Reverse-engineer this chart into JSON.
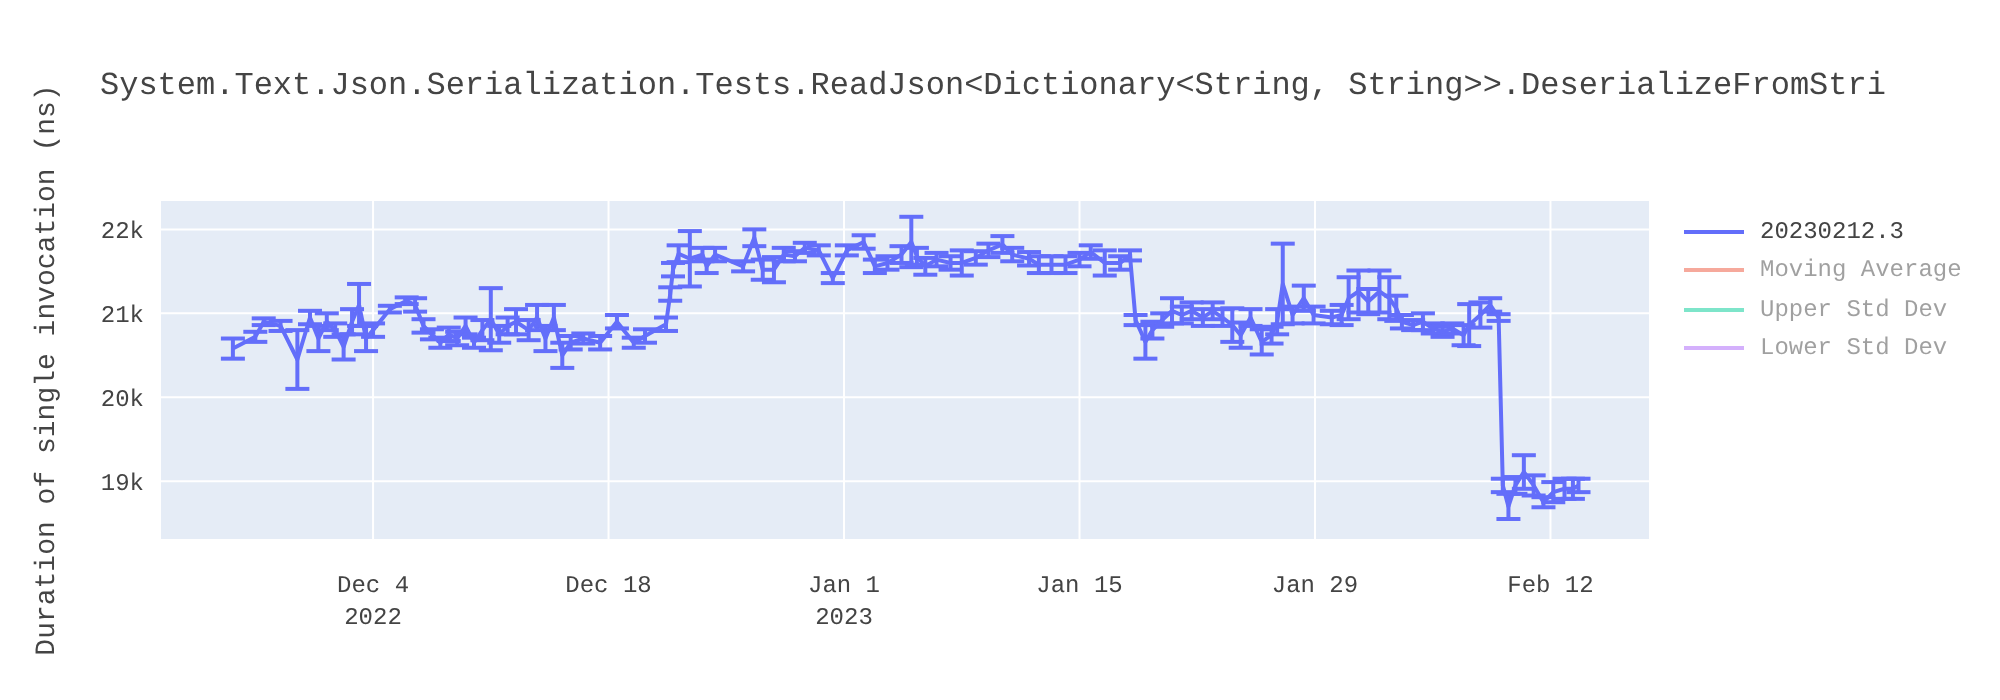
{
  "chart_data": {
    "type": "line",
    "title": "System.Text.Json.Serialization.Tests.ReadJson<Dictionary<String, String>>.DeserializeFromStri",
    "ylabel": "Duration of single invocation (ns)",
    "grid": true,
    "legend": "right",
    "xlim": [
      "2022-11-21T08:00",
      "2023-02-17T22:00"
    ],
    "ylim": [
      18300,
      22350
    ],
    "xticks": [
      {
        "value": "2022-12-04",
        "label": "Dec 4\n2022"
      },
      {
        "value": "2022-12-18",
        "label": "Dec 18"
      },
      {
        "value": "2023-01-01",
        "label": "Jan 1\n2023"
      },
      {
        "value": "2023-01-15",
        "label": "Jan 15"
      },
      {
        "value": "2023-01-29",
        "label": "Jan 29"
      },
      {
        "value": "2023-02-12",
        "label": "Feb 12"
      }
    ],
    "yticks": [
      {
        "value": 19000,
        "label": "19k"
      },
      {
        "value": 20000,
        "label": "20k"
      },
      {
        "value": 21000,
        "label": "21k"
      },
      {
        "value": 22000,
        "label": "22k"
      }
    ],
    "x": [
      "2022-11-25T16:00",
      "2022-11-27T00:00",
      "2022-11-27T12:00",
      "2022-11-28T12:00",
      "2022-11-29T12:00",
      "2022-11-30T06:00",
      "2022-11-30T18:00",
      "2022-12-01T06:00",
      "2022-12-01T18:00",
      "2022-12-02T06:00",
      "2022-12-02T18:00",
      "2022-12-03T04:00",
      "2022-12-03T14:00",
      "2022-12-04T00:00",
      "2022-12-05T00:00",
      "2022-12-06T00:00",
      "2022-12-06T12:00",
      "2022-12-07T00:00",
      "2022-12-07T12:00",
      "2022-12-08T00:00",
      "2022-12-08T12:00",
      "2022-12-09T00:00",
      "2022-12-09T12:00",
      "2022-12-10T00:00",
      "2022-12-10T12:00",
      "2022-12-11T00:00",
      "2022-12-11T12:00",
      "2022-12-12T00:00",
      "2022-12-12T12:00",
      "2022-12-13T06:00",
      "2022-12-13T18:00",
      "2022-12-14T06:00",
      "2022-12-14T18:00",
      "2022-12-15T06:00",
      "2022-12-15T18:00",
      "2022-12-16T12:00",
      "2022-12-17T12:00",
      "2022-12-18T12:00",
      "2022-12-19T12:00",
      "2022-12-20T04:00",
      "2022-12-21T10:00",
      "2022-12-21T16:00",
      "2022-12-21T20:00",
      "2022-12-22T04:00",
      "2022-12-22T20:00",
      "2022-12-23T14:00",
      "2022-12-23T20:00",
      "2022-12-24T08:00",
      "2022-12-26T00:00",
      "2022-12-26T16:00",
      "2022-12-27T04:00",
      "2022-12-27T20:00",
      "2022-12-28T10:00",
      "2022-12-29T02:00",
      "2022-12-29T16:00",
      "2022-12-30T12:00",
      "2022-12-31T08:00",
      "2023-01-01T04:00",
      "2023-01-02T04:00",
      "2023-01-02T20:00",
      "2023-01-03T14:00",
      "2023-01-04T10:00",
      "2023-01-05T00:00",
      "2023-01-05T08:00",
      "2023-01-05T20:00",
      "2023-01-06T12:00",
      "2023-01-07T08:00",
      "2023-01-08T00:00",
      "2023-01-08T20:00",
      "2023-01-09T14:00",
      "2023-01-10T10:00",
      "2023-01-11T00:00",
      "2023-01-12T00:00",
      "2023-01-12T14:00",
      "2023-01-13T08:00",
      "2023-01-14T04:00",
      "2023-01-15T00:00",
      "2023-01-15T16:00",
      "2023-01-16T12:00",
      "2023-01-17T10:00",
      "2023-01-18T00:00",
      "2023-01-18T08:00",
      "2023-01-18T22:00",
      "2023-01-19T08:00",
      "2023-01-19T22:00",
      "2023-01-20T12:00",
      "2023-01-21T02:00",
      "2023-01-21T16:00",
      "2023-01-22T08:00",
      "2023-01-22T22:00",
      "2023-01-23T12:00",
      "2023-01-24T02:00",
      "2023-01-24T14:00",
      "2023-01-25T04:00",
      "2023-01-25T20:00",
      "2023-01-26T10:00",
      "2023-01-26T18:00",
      "2023-01-27T02:00",
      "2023-01-27T16:00",
      "2023-01-28T08:00",
      "2023-01-28T22:00",
      "2023-01-30T00:00",
      "2023-01-30T14:00",
      "2023-01-31T00:00",
      "2023-01-31T14:00",
      "2023-02-01T04:00",
      "2023-02-01T20:00",
      "2023-02-02T10:00",
      "2023-02-02T20:00",
      "2023-02-03T04:00",
      "2023-02-03T20:00",
      "2023-02-04T10:00",
      "2023-02-05T00:00",
      "2023-02-05T14:00",
      "2023-02-06T04:00",
      "2023-02-06T20:00",
      "2023-02-07T04:00",
      "2023-02-07T20:00",
      "2023-02-08T10:00",
      "2023-02-08T22:00",
      "2023-02-09T04:00",
      "2023-02-09T12:00",
      "2023-02-09T22:00",
      "2023-02-10T10:00",
      "2023-02-11T00:00",
      "2023-02-11T14:00",
      "2023-02-12T04:00",
      "2023-02-12T20:00",
      "2023-02-13T08:00",
      "2023-02-13T16:00"
    ],
    "series": [
      {
        "name": "20230212.3",
        "color": "#636efa",
        "values": [
          20580,
          20720,
          20900,
          20850,
          20450,
          20950,
          20700,
          20900,
          20800,
          20600,
          20900,
          21100,
          20700,
          20800,
          21050,
          21150,
          21100,
          20850,
          20750,
          20650,
          20750,
          20700,
          20850,
          20650,
          20800,
          20930,
          20750,
          20850,
          20900,
          20800,
          20950,
          20700,
          20950,
          20500,
          20650,
          20700,
          20650,
          20900,
          20650,
          20730,
          20870,
          21230,
          21520,
          21710,
          21650,
          21700,
          21560,
          21700,
          21560,
          21900,
          21520,
          21520,
          21700,
          21680,
          21780,
          21750,
          21420,
          21750,
          21850,
          21560,
          21600,
          21700,
          21850,
          21680,
          21560,
          21640,
          21600,
          21600,
          21660,
          21750,
          21820,
          21700,
          21650,
          21580,
          21580,
          21580,
          21640,
          21730,
          21600,
          21600,
          21690,
          20920,
          20660,
          20800,
          20920,
          21030,
          20980,
          21030,
          20950,
          21030,
          20950,
          20860,
          20740,
          20950,
          20660,
          20740,
          20900,
          21350,
          20980,
          21180,
          20980,
          20950,
          20980,
          21180,
          21260,
          21140,
          21260,
          21180,
          21060,
          20900,
          20860,
          20900,
          20820,
          20780,
          20820,
          20740,
          20860,
          20980,
          21100,
          20950,
          18950,
          18700,
          18950,
          19110,
          18950,
          18750,
          18870,
          18910,
          18910,
          18950
        ],
        "errors": [
          120,
          60,
          40,
          60,
          350,
          80,
          150,
          100,
          80,
          150,
          150,
          250,
          150,
          80,
          40,
          40,
          80,
          80,
          60,
          60,
          80,
          80,
          100,
          60,
          120,
          370,
          100,
          100,
          150,
          120,
          150,
          150,
          150,
          150,
          80,
          60,
          80,
          80,
          60,
          80,
          80,
          80,
          80,
          100,
          330,
          80,
          80,
          80,
          60,
          100,
          120,
          150,
          80,
          60,
          60,
          60,
          60,
          60,
          80,
          80,
          80,
          100,
          300,
          100,
          100,
          80,
          80,
          150,
          80,
          80,
          100,
          80,
          80,
          100,
          100,
          100,
          80,
          80,
          150,
          80,
          60,
          60,
          200,
          100,
          80,
          150,
          100,
          100,
          100,
          100,
          100,
          200,
          150,
          100,
          150,
          100,
          150,
          480,
          100,
          150,
          100,
          80,
          120,
          250,
          250,
          150,
          250,
          250,
          150,
          80,
          60,
          100,
          60,
          60,
          60,
          120,
          250,
          150,
          80,
          40,
          80,
          150,
          100,
          200,
          120,
          60,
          120,
          120,
          120,
          80
        ]
      },
      {
        "name": "Moving Average",
        "color": "#ef553b",
        "values": [
          null,
          null,
          null,
          null,
          null,
          null,
          null,
          null,
          null,
          null,
          null,
          null,
          null,
          null,
          null,
          null,
          null,
          null,
          null,
          null,
          null,
          null,
          null,
          null,
          null,
          null,
          null,
          null,
          null,
          null,
          null,
          null,
          null,
          null,
          null,
          null,
          null,
          null,
          null,
          null,
          null,
          null,
          null,
          null,
          null,
          null,
          null,
          null,
          null,
          null,
          null,
          null,
          null,
          null,
          null,
          null,
          null,
          null,
          null,
          null,
          null,
          null,
          null,
          null,
          null,
          null,
          null,
          null,
          null,
          null,
          null,
          null,
          null,
          null,
          null,
          null,
          null,
          null,
          null,
          null,
          null,
          null,
          null,
          null,
          null,
          null,
          null,
          null,
          null,
          null,
          null,
          null,
          null,
          null,
          null,
          null,
          null,
          null,
          null,
          null,
          null,
          null,
          null,
          null,
          null,
          null,
          null,
          null,
          null,
          null,
          null,
          null,
          null,
          null,
          null,
          null,
          null,
          null,
          null,
          null,
          null,
          null,
          null,
          null,
          null,
          null,
          null,
          null,
          null,
          null
        ]
      },
      {
        "name": "Upper Std Dev",
        "color": "#00cc96",
        "values": [
          null,
          null,
          null,
          null,
          null,
          null,
          null,
          null,
          null,
          null,
          null,
          null,
          null,
          null,
          null,
          null,
          null,
          null,
          null,
          null,
          null,
          null,
          null,
          null,
          null,
          null,
          null,
          null,
          null,
          null,
          null,
          null,
          null,
          null,
          null,
          null,
          null,
          null,
          null,
          null,
          null,
          null,
          null,
          null,
          null,
          null,
          null,
          null,
          null,
          null,
          null,
          null,
          null,
          null,
          null,
          null,
          null,
          null,
          null,
          null,
          null,
          null,
          null,
          null,
          null,
          null,
          null,
          null,
          null,
          null,
          null,
          null,
          null,
          null,
          null,
          null,
          null,
          null,
          null,
          null,
          null,
          null,
          null,
          null,
          null,
          null,
          null,
          null,
          null,
          null,
          null,
          null,
          null,
          null,
          null,
          null,
          null,
          null,
          null,
          null,
          null,
          null,
          null,
          null,
          null,
          null,
          null,
          null,
          null,
          null,
          null,
          null,
          null,
          null,
          null,
          null,
          null,
          null,
          null,
          null,
          null,
          null,
          null,
          null,
          null,
          null,
          null,
          null,
          null,
          null
        ]
      },
      {
        "name": "Lower Std Dev",
        "color": "#ab63fa",
        "values": [
          null,
          null,
          null,
          null,
          null,
          null,
          null,
          null,
          null,
          null,
          null,
          null,
          null,
          null,
          null,
          null,
          null,
          null,
          null,
          null,
          null,
          null,
          null,
          null,
          null,
          null,
          null,
          null,
          null,
          null,
          null,
          null,
          null,
          null,
          null,
          null,
          null,
          null,
          null,
          null,
          null,
          null,
          null,
          null,
          null,
          null,
          null,
          null,
          null,
          null,
          null,
          null,
          null,
          null,
          null,
          null,
          null,
          null,
          null,
          null,
          null,
          null,
          null,
          null,
          null,
          null,
          null,
          null,
          null,
          null,
          null,
          null,
          null,
          null,
          null,
          null,
          null,
          null,
          null,
          null,
          null,
          null,
          null,
          null,
          null,
          null,
          null,
          null,
          null,
          null,
          null,
          null,
          null,
          null,
          null,
          null,
          null,
          null,
          null,
          null,
          null,
          null,
          null,
          null,
          null,
          null,
          null,
          null,
          null,
          null,
          null,
          null,
          null,
          null,
          null,
          null,
          null,
          null,
          null,
          null,
          null,
          null,
          null,
          null,
          null,
          null,
          null,
          null,
          null,
          null
        ]
      }
    ]
  }
}
